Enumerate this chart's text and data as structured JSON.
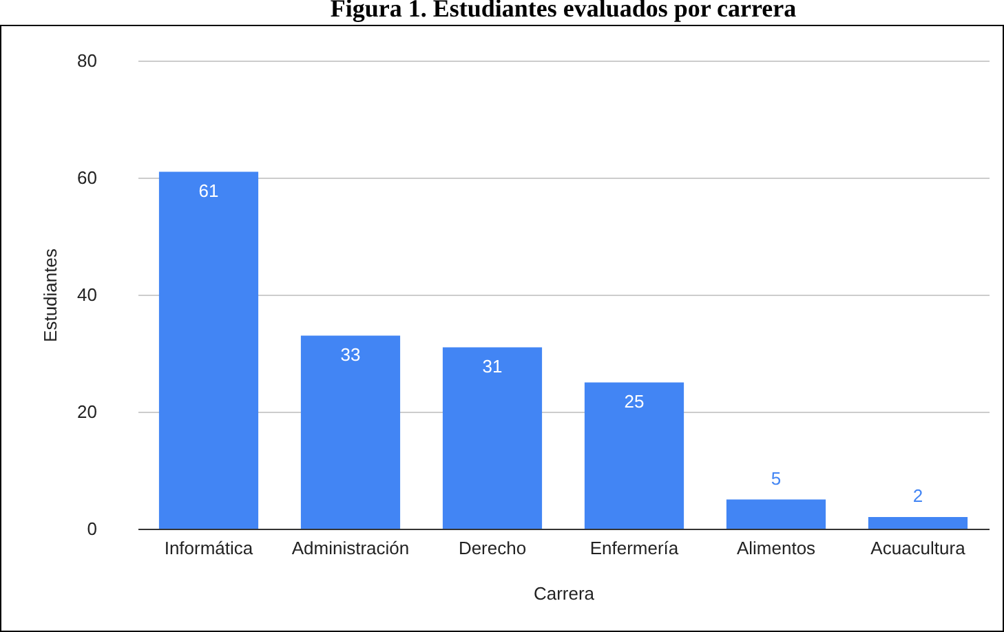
{
  "chart_data": {
    "type": "bar",
    "title": "Figura 1. Estudiantes evaluados por carrera",
    "xlabel": "Carrera",
    "ylabel": "Estudiantes",
    "categories": [
      "Informática",
      "Administración",
      "Derecho",
      "Enfermería",
      "Alimentos",
      "Acuacultura"
    ],
    "values": [
      61,
      33,
      31,
      25,
      5,
      2
    ],
    "color": "#4285f4",
    "ylim": [
      0,
      80
    ],
    "yticks": [
      0,
      20,
      40,
      60,
      80
    ],
    "grid": "y",
    "data_labels": true
  }
}
